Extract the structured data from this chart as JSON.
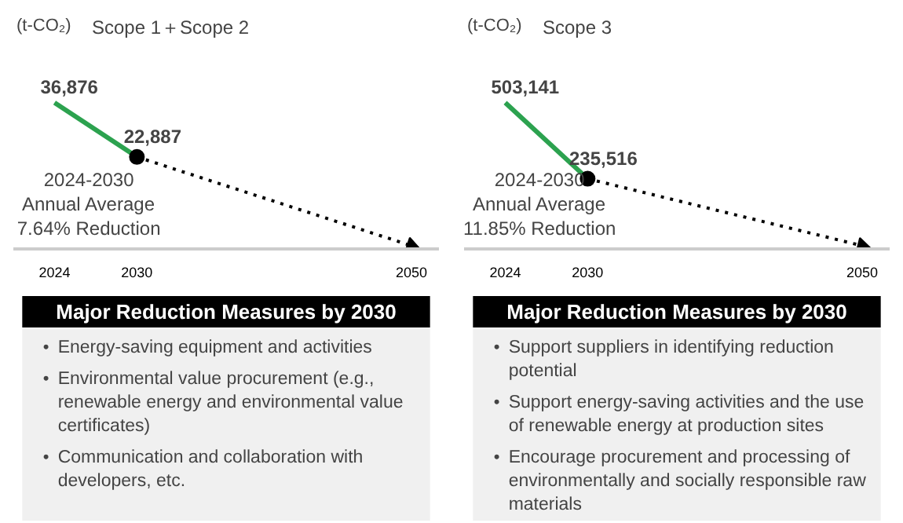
{
  "chart_data": [
    {
      "type": "line",
      "title": "Scope 1＋Scope 2",
      "ylabel": "(t-CO₂)",
      "x": [
        2024,
        2030,
        2050
      ],
      "xlim": [
        2021,
        2052
      ],
      "xticks": [
        2024,
        2030,
        2050
      ],
      "tick_labels": "x",
      "grid": false,
      "series": [
        {
          "color": "#2ca24f",
          "values": [
            36876,
            22887,
            null
          ],
          "value_labels": [
            "36,876",
            "22,887",
            null
          ],
          "line_style": "solid"
        },
        {
          "color": "#000000",
          "values": [
            null,
            22887,
            0
          ],
          "line_style": "dotted",
          "marker": "circle"
        }
      ],
      "annotations": [
        "2024-2030\nAnnual Average\n7.64% Reduction"
      ]
    },
    {
      "type": "other",
      "title": "Major Reduction Measures by 2030",
      "annotations": [
        "• Energy-saving equipment and activities",
        "• Environmental value procurement (e.g., renewable energy and environmental value certificates)",
        "• Communication and collaboration with developers, etc."
      ]
    },
    {
      "type": "line",
      "title": "Scope 3",
      "ylabel": "(t-CO₂)",
      "x": [
        2024,
        2030,
        2050
      ],
      "xlim": [
        2021,
        2052
      ],
      "xticks": [
        2024,
        2030,
        2050
      ],
      "tick_labels": "x",
      "grid": false,
      "series": [
        {
          "color": "#2ca24f",
          "values": [
            503141,
            235516,
            null
          ],
          "value_labels": [
            "503,141",
            "235,516",
            null
          ],
          "line_style": "solid"
        },
        {
          "color": "#000000",
          "values": [
            null,
            235516,
            0
          ],
          "line_style": "dotted",
          "marker": "circle"
        }
      ],
      "annotations": [
        "2024-2030\nAnnual Average\n11.85% Reduction"
      ]
    },
    {
      "type": "other",
      "title": "Major Reduction Measures by 2030",
      "annotations": [
        "• Support suppliers in identifying reduction potential",
        "• Support energy-saving activities and the use of renewable energy at production sites",
        "• Encourage procurement and processing of environmentally and socially responsible raw materials"
      ]
    }
  ]
}
